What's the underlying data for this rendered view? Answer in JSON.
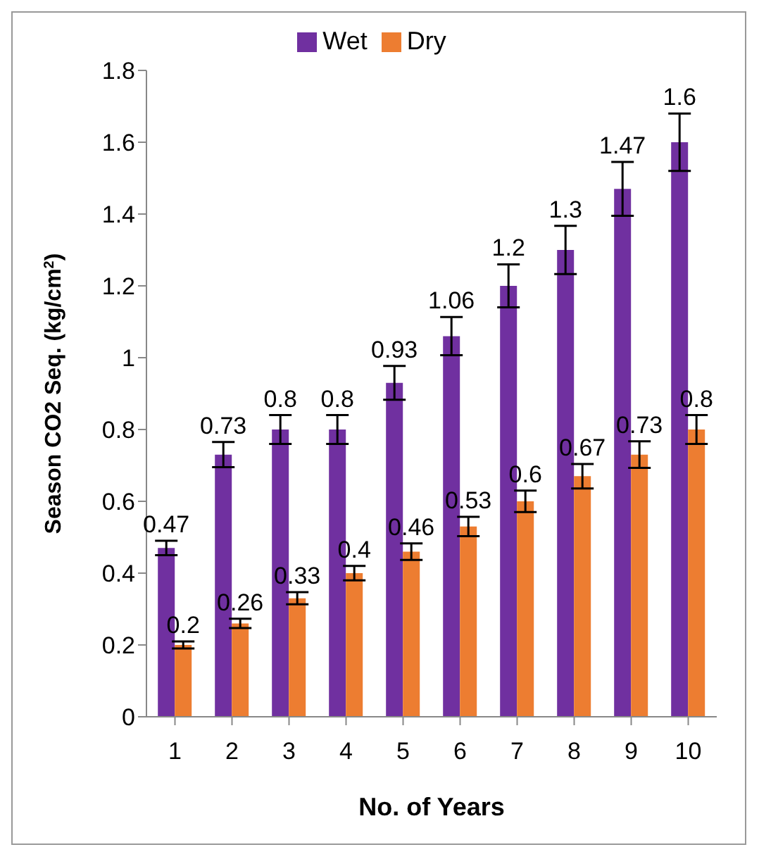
{
  "chart_data": {
    "type": "bar",
    "xlabel": "No. of Years",
    "ylabel": "Season CO2 Seq. (kg/cm$^{2}$)",
    "categories": [
      "1",
      "2",
      "3",
      "4",
      "5",
      "6",
      "7",
      "8",
      "9",
      "10"
    ],
    "series": [
      {
        "name": "Wet",
        "color": "#7030a0",
        "values": [
          0.47,
          0.73,
          0.8,
          0.8,
          0.93,
          1.06,
          1.2,
          1.3,
          1.47,
          1.6
        ],
        "errors": [
          0.02,
          0.035,
          0.04,
          0.04,
          0.047,
          0.053,
          0.06,
          0.067,
          0.075,
          0.08
        ]
      },
      {
        "name": "Dry",
        "color": "#ed7d31",
        "values": [
          0.2,
          0.26,
          0.33,
          0.4,
          0.46,
          0.53,
          0.6,
          0.67,
          0.73,
          0.8
        ],
        "errors": [
          0.01,
          0.013,
          0.017,
          0.02,
          0.023,
          0.027,
          0.03,
          0.034,
          0.037,
          0.04
        ]
      }
    ],
    "ylim": [
      0,
      1.8
    ],
    "yticks": [
      0,
      0.2,
      0.4,
      0.6,
      0.8,
      1,
      1.2,
      1.4,
      1.6,
      1.8
    ],
    "data_labels": true,
    "legend": "top",
    "grid": false
  }
}
